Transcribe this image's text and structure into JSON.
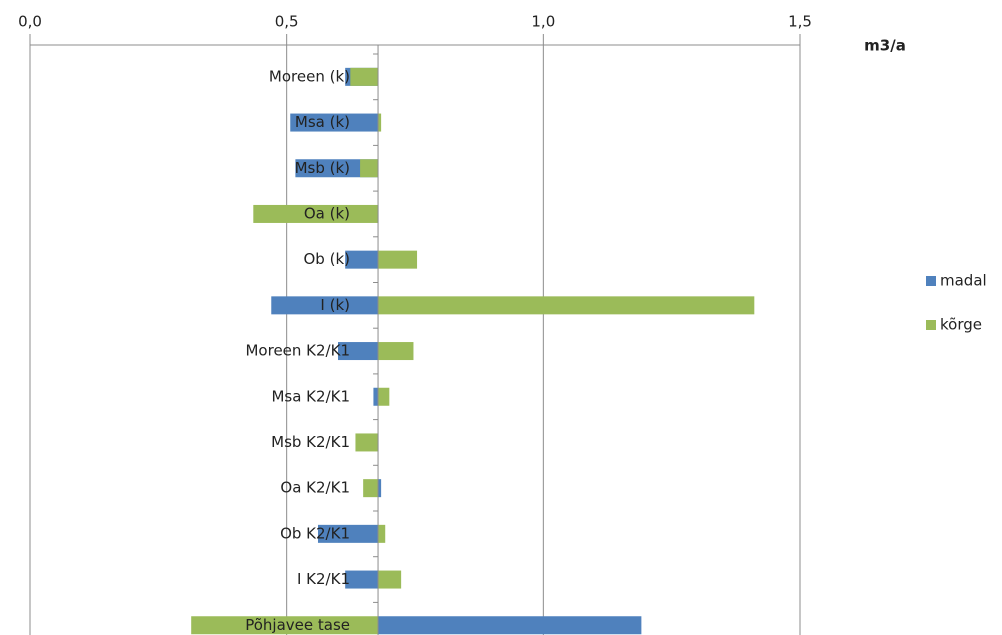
{
  "chart_data": {
    "type": "bar",
    "orientation": "horizontal",
    "unit_label": "m3/a",
    "categories": [
      "Moreen (k)",
      "Msa (k)",
      "Msb (k)",
      "Oa (k)",
      "Ob (k)",
      "I (k)",
      "Moreen K2/K1",
      "Msa  K2/K1",
      "Msb  K2/K1",
      "Oa  K2/K1",
      "Ob  K2/K1",
      "I  K2/K1",
      "Põhjavee tase"
    ],
    "series": [
      {
        "name": "madal",
        "color": "#4f81bd",
        "values": [
          0.614,
          0.507,
          0.517,
          0.678,
          0.614,
          0.47,
          0.6,
          0.669,
          0.678,
          0.684,
          0.561,
          0.614,
          1.191
        ]
      },
      {
        "name": "kõrge",
        "color": "#9bbb59",
        "values": [
          0.624,
          0.684,
          0.643,
          0.435,
          0.754,
          1.411,
          0.747,
          0.7,
          0.634,
          0.649,
          0.692,
          0.723,
          0.314
        ]
      }
    ],
    "axis_crossing": 0.678,
    "xlim": [
      0,
      1.5
    ],
    "xticks": [
      {
        "value": 0,
        "label": "0,0"
      },
      {
        "value": 0.5,
        "label": "0,5"
      },
      {
        "value": 1.0,
        "label": "1,0"
      },
      {
        "value": 1.5,
        "label": "1,5"
      }
    ],
    "grid": true,
    "legend": "right"
  }
}
